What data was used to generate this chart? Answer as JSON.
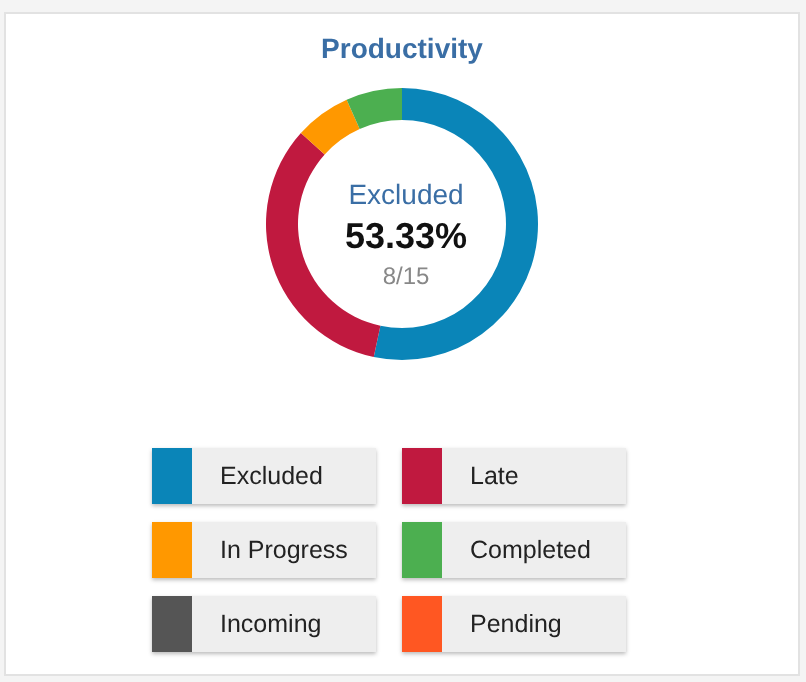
{
  "chart_data": {
    "type": "donut",
    "title": "Productivity",
    "categories": [
      "Excluded",
      "Late",
      "In Progress",
      "Completed",
      "Incoming",
      "Pending"
    ],
    "values": [
      53.33,
      33.33,
      6.67,
      6.67,
      0,
      0
    ],
    "colors": [
      "#0a85b8",
      "#c0193f",
      "#ff9800",
      "#4caf50",
      "#555555",
      "#ff5722"
    ],
    "annotations": [
      "Excluded",
      "53.33%",
      "8/15"
    ],
    "legend": "bottom"
  }
}
